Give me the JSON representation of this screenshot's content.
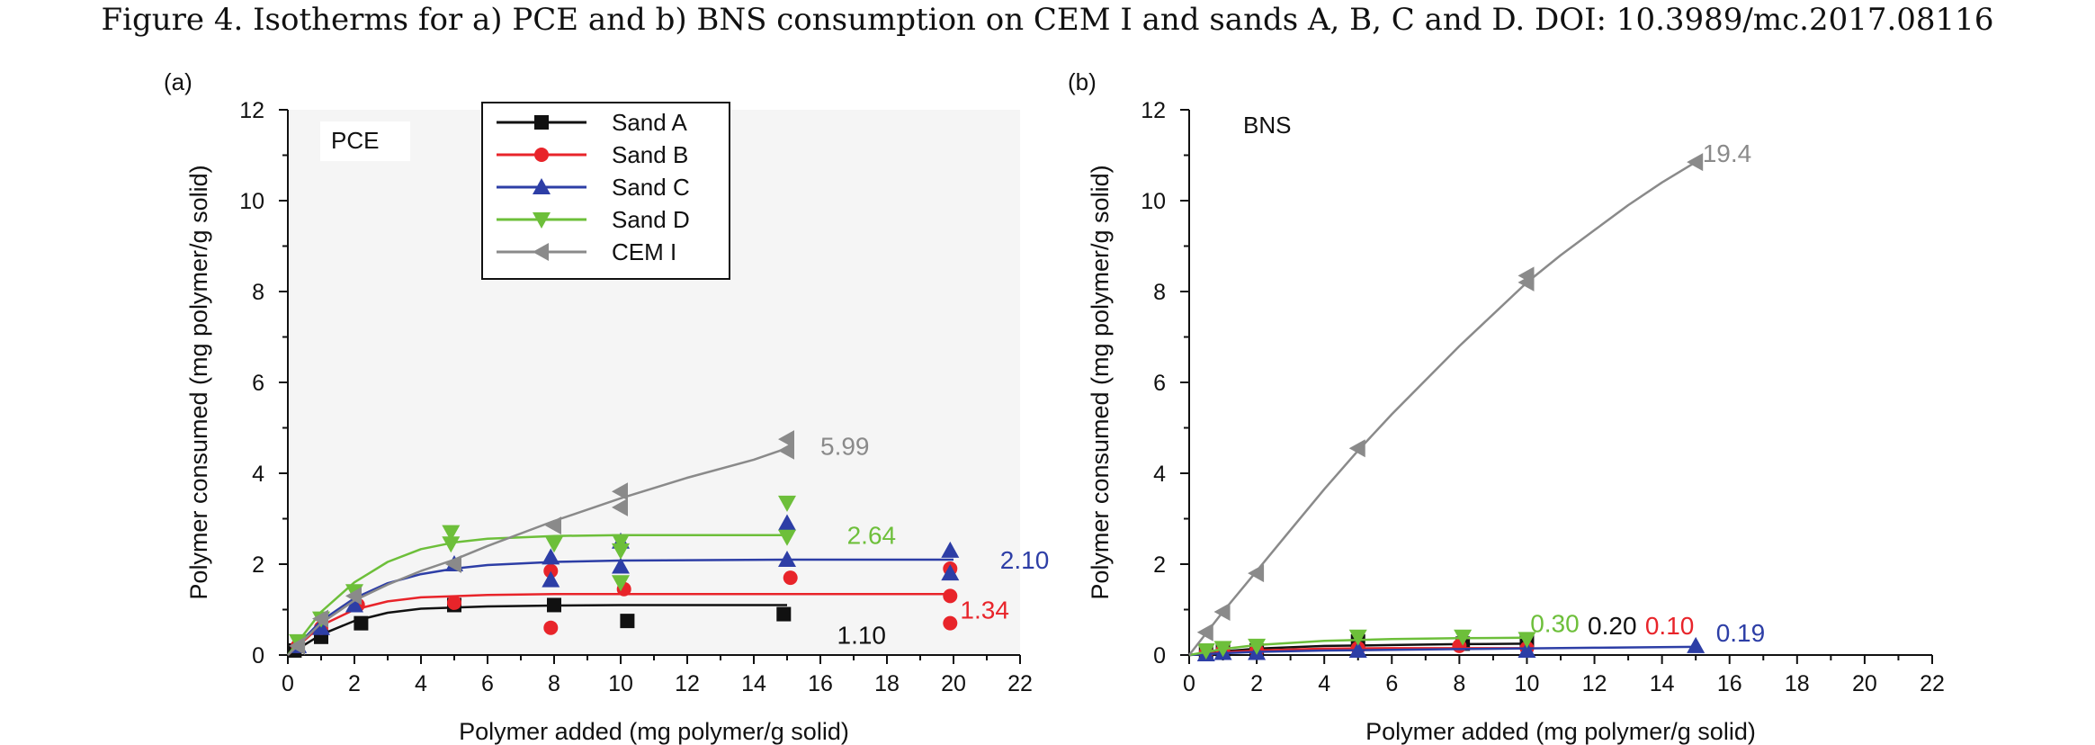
{
  "caption": "Figure 4. Isotherms for a) PCE and b) BNS consumption on CEM I and sands A, B, C and D. DOI: 10.3989/mc.2017.08116",
  "colors": {
    "sand_a": "#111111",
    "sand_b": "#e8242a",
    "sand_c": "#2d3ea6",
    "sand_d": "#6dbf3a",
    "cem_i": "#8a8a8a",
    "plot_bg": "#f5f5f5"
  },
  "chart_data": [
    {
      "type": "scatter",
      "panel_label": "(a)",
      "title": "PCE",
      "xlabel": "Polymer added (mg polymer/g solid)",
      "ylabel": "Polymer consumed (mg polymer/g solid)",
      "xlim": [
        0,
        22
      ],
      "ylim": [
        0,
        12
      ],
      "x_ticks": [
        "0",
        "2",
        "4",
        "6",
        "8",
        "10",
        "12",
        "14",
        "16",
        "18",
        "20",
        "22"
      ],
      "y_ticks": [
        "0",
        "2",
        "4",
        "6",
        "8",
        "10",
        "12"
      ],
      "legend_position": "top-center",
      "series": [
        {
          "name": "Sand A",
          "color_key": "sand_a",
          "marker": "square",
          "points": [
            [
              0.2,
              0.1
            ],
            [
              1.0,
              0.4
            ],
            [
              2.2,
              0.7
            ],
            [
              5.0,
              1.1
            ],
            [
              8.0,
              1.1
            ],
            [
              10.2,
              0.75
            ],
            [
              14.9,
              0.9
            ]
          ],
          "fit": [
            [
              0,
              0
            ],
            [
              1,
              0.45
            ],
            [
              2,
              0.75
            ],
            [
              3,
              0.93
            ],
            [
              4,
              1.02
            ],
            [
              6,
              1.07
            ],
            [
              8,
              1.09
            ],
            [
              10,
              1.1
            ],
            [
              15,
              1.1
            ]
          ],
          "annotation": {
            "text": "1.10",
            "x": 16.5,
            "y": 0.45
          }
        },
        {
          "name": "Sand B",
          "color_key": "sand_b",
          "marker": "circle",
          "points": [
            [
              0.3,
              0.2
            ],
            [
              1.0,
              0.6
            ],
            [
              2.1,
              1.1
            ],
            [
              5.0,
              1.15
            ],
            [
              7.9,
              0.6
            ],
            [
              7.9,
              1.85
            ],
            [
              10.1,
              1.45
            ],
            [
              15.1,
              1.7
            ],
            [
              19.9,
              0.7
            ],
            [
              19.9,
              1.3
            ],
            [
              19.9,
              1.9
            ]
          ],
          "fit": [
            [
              0,
              0
            ],
            [
              1,
              0.65
            ],
            [
              2,
              1.0
            ],
            [
              3,
              1.18
            ],
            [
              4,
              1.27
            ],
            [
              6,
              1.32
            ],
            [
              8,
              1.34
            ],
            [
              10,
              1.34
            ],
            [
              15,
              1.34
            ],
            [
              20,
              1.34
            ]
          ],
          "annotation": {
            "text": "1.34",
            "x": 20.2,
            "y": 1.0
          }
        },
        {
          "name": "Sand C",
          "color_key": "sand_c",
          "marker": "triangle-up",
          "points": [
            [
              0.3,
              0.2
            ],
            [
              1.0,
              0.6
            ],
            [
              2.0,
              1.1
            ],
            [
              5.0,
              2.0
            ],
            [
              7.9,
              1.65
            ],
            [
              7.9,
              2.15
            ],
            [
              10.0,
              1.95
            ],
            [
              10.0,
              2.5
            ],
            [
              15.0,
              2.9
            ],
            [
              15.0,
              2.1
            ],
            [
              19.9,
              1.8
            ],
            [
              19.9,
              2.3
            ]
          ],
          "fit": [
            [
              0,
              0
            ],
            [
              1,
              0.75
            ],
            [
              2,
              1.25
            ],
            [
              3,
              1.58
            ],
            [
              4,
              1.78
            ],
            [
              5,
              1.9
            ],
            [
              6,
              1.98
            ],
            [
              8,
              2.05
            ],
            [
              10,
              2.08
            ],
            [
              15,
              2.1
            ],
            [
              20,
              2.1
            ]
          ],
          "annotation": {
            "text": "2.10",
            "x": 21.4,
            "y": 2.1
          }
        },
        {
          "name": "Sand D",
          "color_key": "sand_d",
          "marker": "triangle-down",
          "points": [
            [
              0.3,
              0.3
            ],
            [
              1.0,
              0.8
            ],
            [
              2.0,
              1.4
            ],
            [
              4.9,
              2.7
            ],
            [
              4.9,
              2.45
            ],
            [
              8.0,
              2.45
            ],
            [
              10.0,
              2.3
            ],
            [
              10.0,
              2.5
            ],
            [
              10.0,
              1.6
            ],
            [
              15.0,
              3.35
            ],
            [
              15.0,
              2.6
            ]
          ],
          "fit": [
            [
              0,
              0
            ],
            [
              1,
              0.95
            ],
            [
              2,
              1.6
            ],
            [
              3,
              2.05
            ],
            [
              4,
              2.33
            ],
            [
              5,
              2.48
            ],
            [
              6,
              2.56
            ],
            [
              8,
              2.62
            ],
            [
              10,
              2.64
            ],
            [
              15,
              2.64
            ]
          ],
          "annotation": {
            "text": "2.64",
            "x": 16.8,
            "y": 2.64
          }
        },
        {
          "name": "CEM I",
          "color_key": "cem_i",
          "marker": "triangle-left",
          "points": [
            [
              0.3,
              0.2
            ],
            [
              1.0,
              0.8
            ],
            [
              2.0,
              1.3
            ],
            [
              5.0,
              2.0
            ],
            [
              8.0,
              2.85
            ],
            [
              10.0,
              3.6
            ],
            [
              10.0,
              3.25
            ],
            [
              15.0,
              4.5
            ],
            [
              15.0,
              4.75
            ]
          ],
          "fit": [
            [
              0,
              0
            ],
            [
              1,
              0.7
            ],
            [
              2,
              1.2
            ],
            [
              3,
              1.55
            ],
            [
              4,
              1.85
            ],
            [
              5,
              2.1
            ],
            [
              6,
              2.4
            ],
            [
              8,
              2.95
            ],
            [
              10,
              3.45
            ],
            [
              12,
              3.9
            ],
            [
              14,
              4.3
            ],
            [
              15,
              4.55
            ]
          ],
          "annotation": {
            "text": "5.99",
            "x": 16.0,
            "y": 4.6
          }
        }
      ]
    },
    {
      "type": "scatter",
      "panel_label": "(b)",
      "title": "BNS",
      "xlabel": "Polymer added (mg polymer/g solid)",
      "ylabel": "Polymer consumed (mg polymer/g solid)",
      "xlim": [
        0,
        22
      ],
      "ylim": [
        0,
        12
      ],
      "x_ticks": [
        "0",
        "2",
        "4",
        "6",
        "8",
        "10",
        "12",
        "14",
        "16",
        "18",
        "20",
        "22"
      ],
      "y_ticks": [
        "0",
        "2",
        "4",
        "6",
        "8",
        "10",
        "12"
      ],
      "series": [
        {
          "name": "Sand A",
          "color_key": "sand_a",
          "marker": "square",
          "points": [
            [
              0.5,
              0.05
            ],
            [
              1.0,
              0.1
            ],
            [
              2.0,
              0.1
            ],
            [
              5.0,
              0.3
            ],
            [
              8.1,
              0.25
            ],
            [
              10.0,
              0.3
            ]
          ],
          "fit": [
            [
              0,
              0
            ],
            [
              1,
              0.08
            ],
            [
              2,
              0.14
            ],
            [
              4,
              0.2
            ],
            [
              6,
              0.22
            ],
            [
              8,
              0.24
            ],
            [
              10,
              0.25
            ]
          ],
          "annotation": {
            "text": "0.20",
            "x": 11.8,
            "y": 0.65
          }
        },
        {
          "name": "Sand B",
          "color_key": "sand_b",
          "marker": "circle",
          "points": [
            [
              0.5,
              0.05
            ],
            [
              1.0,
              0.1
            ],
            [
              2.0,
              0.1
            ],
            [
              5.0,
              0.15
            ],
            [
              8.0,
              0.2
            ],
            [
              10.0,
              0.15
            ]
          ],
          "fit": [
            [
              0,
              0
            ],
            [
              1,
              0.06
            ],
            [
              2,
              0.1
            ],
            [
              4,
              0.14
            ],
            [
              6,
              0.15
            ],
            [
              10,
              0.15
            ]
          ],
          "annotation": {
            "text": "0.10",
            "x": 13.5,
            "y": 0.65
          }
        },
        {
          "name": "Sand C",
          "color_key": "sand_c",
          "marker": "triangle-up",
          "points": [
            [
              0.5,
              0.02
            ],
            [
              1.0,
              0.05
            ],
            [
              2.0,
              0.05
            ],
            [
              5.0,
              0.1
            ],
            [
              10.0,
              0.1
            ],
            [
              15.0,
              0.2
            ]
          ],
          "fit": [
            [
              0,
              0
            ],
            [
              1,
              0.04
            ],
            [
              2,
              0.07
            ],
            [
              4,
              0.1
            ],
            [
              8,
              0.13
            ],
            [
              12,
              0.16
            ],
            [
              15,
              0.18
            ]
          ],
          "annotation": {
            "text": "0.19",
            "x": 15.6,
            "y": 0.5
          }
        },
        {
          "name": "Sand D",
          "color_key": "sand_d",
          "marker": "triangle-down",
          "points": [
            [
              0.5,
              0.1
            ],
            [
              1.0,
              0.15
            ],
            [
              2.0,
              0.2
            ],
            [
              5.0,
              0.4
            ],
            [
              8.1,
              0.4
            ],
            [
              10.0,
              0.35
            ]
          ],
          "fit": [
            [
              0,
              0
            ],
            [
              1,
              0.13
            ],
            [
              2,
              0.22
            ],
            [
              4,
              0.31
            ],
            [
              6,
              0.35
            ],
            [
              8,
              0.37
            ],
            [
              10,
              0.38
            ]
          ],
          "annotation": {
            "text": "0.30",
            "x": 10.1,
            "y": 0.7
          }
        },
        {
          "name": "CEM I",
          "color_key": "cem_i",
          "marker": "triangle-left",
          "points": [
            [
              0.5,
              0.5
            ],
            [
              1.0,
              0.95
            ],
            [
              2.0,
              1.8
            ],
            [
              5.0,
              4.55
            ],
            [
              10.0,
              8.2
            ],
            [
              10.0,
              8.35
            ],
            [
              15.0,
              10.85
            ]
          ],
          "fit": [
            [
              0,
              0
            ],
            [
              1,
              0.95
            ],
            [
              2,
              1.85
            ],
            [
              3,
              2.75
            ],
            [
              4,
              3.65
            ],
            [
              5,
              4.5
            ],
            [
              6,
              5.3
            ],
            [
              7,
              6.05
            ],
            [
              8,
              6.8
            ],
            [
              9,
              7.5
            ],
            [
              10,
              8.2
            ],
            [
              11,
              8.8
            ],
            [
              12,
              9.35
            ],
            [
              13,
              9.9
            ],
            [
              14,
              10.4
            ],
            [
              15,
              10.85
            ]
          ],
          "annotation": {
            "text": "19.4",
            "x": 15.2,
            "y": 11.05
          }
        }
      ]
    }
  ]
}
